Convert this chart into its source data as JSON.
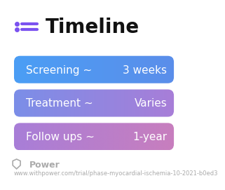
{
  "title": "Timeline",
  "title_fontsize": 20,
  "title_color": "#111111",
  "title_bold": true,
  "icon_color": "#7B52F0",
  "background_color": "#ffffff",
  "rows": [
    {
      "label": "Screening ~",
      "value": "3 weeks",
      "color_left": "#4B9EF5",
      "color_right": "#5B8EEA"
    },
    {
      "label": "Treatment ~",
      "value": "Varies",
      "color_left": "#7B8EE8",
      "color_right": "#A87ED8"
    },
    {
      "label": "Follow ups ~",
      "value": "1-year",
      "color_left": "#A87ED8",
      "color_right": "#C87EBE"
    }
  ],
  "label_fontsize": 11,
  "value_fontsize": 11,
  "text_color": "#ffffff",
  "footer_text": "Power",
  "footer_url": "www.withpower.com/trial/phase-myocardial-ischemia-10-2021-b0ed3",
  "footer_fontsize": 6.0,
  "footer_color": "#aaaaaa"
}
